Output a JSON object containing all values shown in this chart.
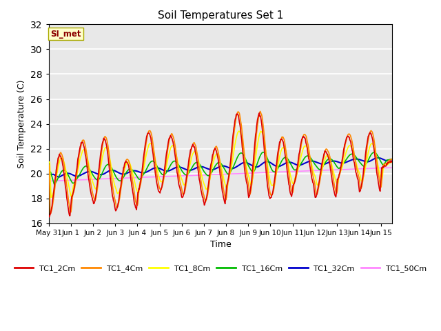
{
  "title": "Soil Temperatures Set 1",
  "xlabel": "Time",
  "ylabel": "Soil Temperature (C)",
  "ylim": [
    16,
    32
  ],
  "xlim_days": 15.5,
  "background_color": "#e8e8e8",
  "grid_color": "white",
  "annotation_text": "SI_met",
  "annotation_color": "#8b0000",
  "annotation_bg": "#ffffcc",
  "tick_labels": [
    "May 31",
    "Jun 1",
    "Jun 2",
    "Jun 3",
    "Jun 4",
    "Jun 5",
    "Jun 6",
    "Jun 7",
    "Jun 8",
    "Jun 9",
    "Jun 10",
    "Jun 11",
    "Jun 12",
    "Jun 13",
    "Jun 14",
    "Jun 15"
  ],
  "series": {
    "TC1_2Cm": {
      "color": "#dd0000",
      "lw": 1.2
    },
    "TC1_4Cm": {
      "color": "#ff8800",
      "lw": 1.2
    },
    "TC1_8Cm": {
      "color": "#ffff00",
      "lw": 1.2
    },
    "TC1_16Cm": {
      "color": "#00bb00",
      "lw": 1.2
    },
    "TC1_32Cm": {
      "color": "#0000cc",
      "lw": 1.5
    },
    "TC1_50Cm": {
      "color": "#ff88ff",
      "lw": 1.2
    }
  },
  "figsize": [
    6.4,
    4.8
  ],
  "dpi": 100
}
